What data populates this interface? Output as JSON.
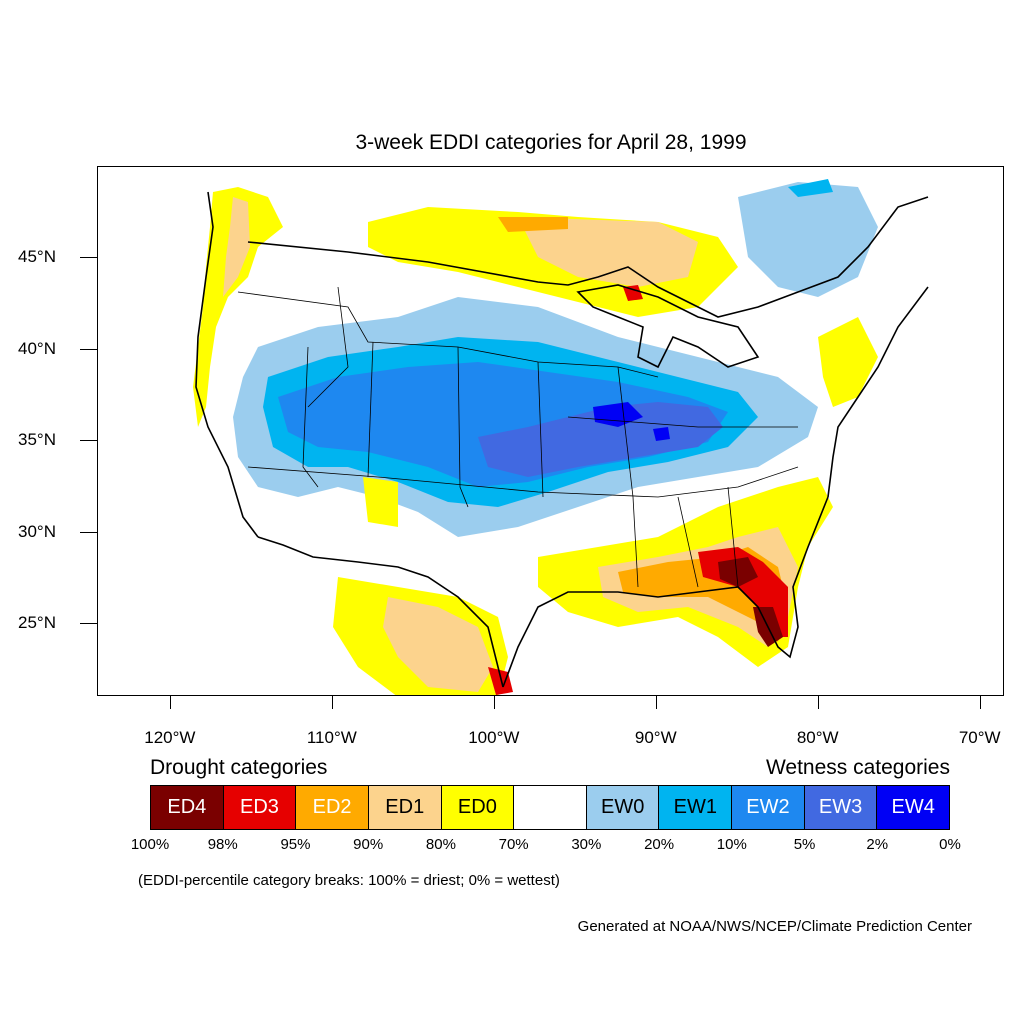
{
  "title": "3-week EDDI categories for April 28, 1999",
  "map": {
    "lon_range": [
      -124.5,
      -68.5
    ],
    "lat_range": [
      21,
      50
    ],
    "lat_ticks": [
      {
        "value": 45,
        "label": "45°N"
      },
      {
        "value": 40,
        "label": "40°N"
      },
      {
        "value": 35,
        "label": "35°N"
      },
      {
        "value": 30,
        "label": "30°N"
      },
      {
        "value": 25,
        "label": "25°N"
      }
    ],
    "lon_ticks": [
      {
        "value": -120,
        "label": "120°W"
      },
      {
        "value": -110,
        "label": "110°W"
      },
      {
        "value": -100,
        "label": "100°W"
      },
      {
        "value": -90,
        "label": "90°W"
      },
      {
        "value": -80,
        "label": "80°W"
      },
      {
        "value": -70,
        "label": "70°W"
      }
    ]
  },
  "legend": {
    "drought_heading": "Drought categories",
    "wetness_heading": "Wetness categories",
    "categories": [
      {
        "label": "ED4",
        "color": "#7a0000",
        "text_color": "#ffffff"
      },
      {
        "label": "ED3",
        "color": "#e60000",
        "text_color": "#ffffff"
      },
      {
        "label": "ED2",
        "color": "#ffaa00",
        "text_color": "#ffffff"
      },
      {
        "label": "ED1",
        "color": "#fcd38d",
        "text_color": "#000000"
      },
      {
        "label": "ED0",
        "color": "#ffff00",
        "text_color": "#000000"
      },
      {
        "label": "",
        "color": "#ffffff",
        "text_color": "#000000"
      },
      {
        "label": "EW0",
        "color": "#9bcdee",
        "text_color": "#000000"
      },
      {
        "label": "EW1",
        "color": "#00b4f0",
        "text_color": "#000000"
      },
      {
        "label": "EW2",
        "color": "#1e88f0",
        "text_color": "#ffffff"
      },
      {
        "label": "EW3",
        "color": "#4169e1",
        "text_color": "#ffffff"
      },
      {
        "label": "EW4",
        "color": "#0000f5",
        "text_color": "#ffffff"
      }
    ],
    "breaks": [
      "100%",
      "98%",
      "95%",
      "90%",
      "80%",
      "70%",
      "30%",
      "20%",
      "10%",
      "5%",
      "2%",
      "0%"
    ],
    "note": "(EDDI-percentile category breaks: 100% = driest; 0% = wettest)"
  },
  "credit": "Generated at NOAA/NWS/NCEP/Climate Prediction Center"
}
